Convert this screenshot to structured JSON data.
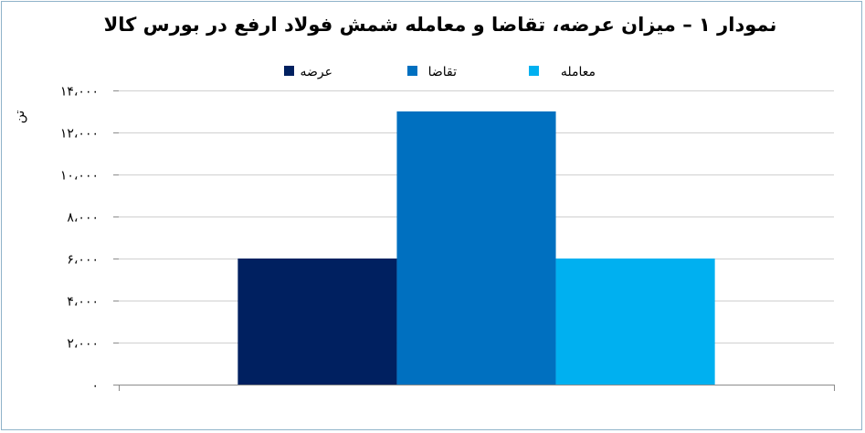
{
  "chart_data": {
    "type": "bar",
    "title": "نمودار ۱ – میزان عرضه، تقاضا و معامله شمش فولاد ارفع در بورس کالا",
    "ylabel": "تن",
    "ylim": [
      0,
      14000
    ],
    "yticks": [
      0,
      2000,
      4000,
      6000,
      8000,
      10000,
      12000,
      14000
    ],
    "ytick_labels": [
      "۰",
      "۲،۰۰۰",
      "۴،۰۰۰",
      "۶،۰۰۰",
      "۸،۰۰۰",
      "۱۰،۰۰۰",
      "۱۲،۰۰۰",
      "۱۴،۰۰۰"
    ],
    "grid": true,
    "legend_position": "top",
    "series": [
      {
        "name": "عرضه",
        "values": [
          6000
        ],
        "color": "#002060"
      },
      {
        "name": "تقاضا",
        "values": [
          13000
        ],
        "color": "#0070C0"
      },
      {
        "name": "معامله",
        "values": [
          6000
        ],
        "color": "#00B0F0"
      }
    ]
  }
}
